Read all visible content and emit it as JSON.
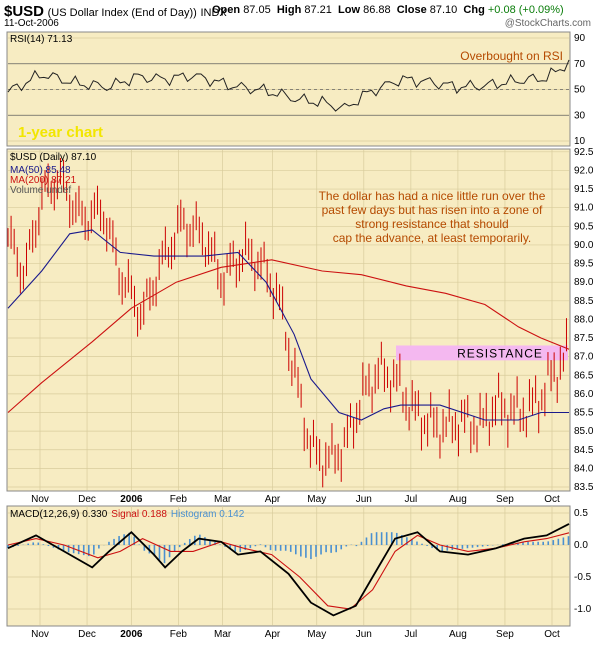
{
  "header": {
    "symbol": "$USD",
    "name": "(US Dollar Index (End of Day))",
    "exchange": "INDX",
    "date": "11-Oct-2006",
    "open_label": "Open",
    "open": "87.05",
    "high_label": "High",
    "high": "87.21",
    "low_label": "Low",
    "low": "86.88",
    "close_label": "Close",
    "close": "87.10",
    "chg_label": "Chg",
    "chg": "+0.08 (+0.09%)",
    "logo": "@StockCharts.com"
  },
  "annotations": {
    "overbought": "Overbought on RSI",
    "one_year": "1-year chart",
    "comment_lines": [
      "The dollar has had a nice little run over the",
      "past few days but has risen into a zone of",
      "strong resistance that should",
      "cap the advance, at least temporarily."
    ],
    "resistance": "RESISTANCE"
  },
  "colors": {
    "panel_bg": "#f7ecc2",
    "price_bar": "#cc0000",
    "ma50": "#1a1a8c",
    "ma200": "#cc1111",
    "resistance_band": "#f4b8f0",
    "annotation_text": "#b54a00",
    "rsi_line": "#222222",
    "macd_hist": "#4a90d0"
  },
  "chart_data": [
    {
      "type": "line",
      "title": "RSI(14) 71.13",
      "ylim": [
        10,
        90
      ],
      "yticks": [
        10,
        30,
        50,
        70,
        90
      ],
      "reference_lines": [
        30,
        70
      ],
      "series": [
        {
          "name": "RSI(14)",
          "x": [
            0,
            6,
            12,
            18,
            23,
            28,
            33,
            38,
            41,
            46,
            52,
            56,
            60,
            64,
            70,
            75,
            80,
            85,
            91,
            96,
            100
          ],
          "values": [
            48,
            62,
            55,
            52,
            60,
            58,
            61,
            55,
            52,
            49,
            42,
            40,
            35,
            47,
            58,
            56,
            52,
            53,
            57,
            59,
            71
          ]
        }
      ]
    },
    {
      "type": "line",
      "title": "$USD (Daily) 87.10",
      "ylim": [
        83.5,
        92.5
      ],
      "yticks": [
        83.5,
        84.0,
        84.5,
        85.0,
        85.5,
        86.0,
        86.5,
        87.0,
        87.5,
        88.0,
        88.5,
        89.0,
        89.5,
        90.0,
        90.5,
        91.0,
        91.5,
        92.0,
        92.5
      ],
      "xticks": [
        "Nov",
        "Dec",
        "2006",
        "Feb",
        "Mar",
        "Apr",
        "May",
        "Jun",
        "Jul",
        "Aug",
        "Sep",
        "Oct"
      ],
      "resistance_zone": [
        86.9,
        87.3
      ],
      "series": [
        {
          "name": "$USD (Daily)",
          "x": [
            0,
            3,
            6,
            9,
            13,
            17,
            20,
            24,
            27,
            31,
            35,
            38,
            42,
            45,
            48,
            51,
            54,
            57,
            60,
            63,
            66,
            69,
            72,
            75,
            78,
            81,
            84,
            87,
            90,
            93,
            95,
            97,
            100
          ],
          "values": [
            90.2,
            89.2,
            91.3,
            91.8,
            90.7,
            90.9,
            89.2,
            88.1,
            89.4,
            90.6,
            90.2,
            89.1,
            89.8,
            89.5,
            88.7,
            86.6,
            84.5,
            84.2,
            84.6,
            85.9,
            86.6,
            86.4,
            85.6,
            85.2,
            85.1,
            85.3,
            85.1,
            85.7,
            85.5,
            85.6,
            85.9,
            86.5,
            87.1
          ]
        },
        {
          "name": "MA(50) 85.48",
          "x": [
            0,
            6,
            11,
            15,
            20,
            26,
            31,
            35,
            41,
            46,
            51,
            54,
            59,
            63,
            67,
            70,
            77,
            85,
            91,
            95,
            100
          ],
          "values": [
            88.3,
            89.3,
            90.3,
            90.4,
            89.8,
            89.7,
            89.7,
            89.7,
            89.8,
            89.0,
            87.6,
            86.4,
            85.5,
            85.3,
            85.6,
            85.7,
            85.7,
            85.3,
            85.3,
            85.5,
            85.5
          ]
        },
        {
          "name": "MA(200) 87.21",
          "x": [
            0,
            6,
            15,
            22,
            30,
            38,
            47,
            56,
            63,
            71,
            78,
            85,
            91,
            95,
            100
          ],
          "values": [
            85.5,
            86.3,
            87.4,
            88.3,
            89.0,
            89.4,
            89.6,
            89.3,
            89.2,
            88.9,
            88.7,
            88.4,
            87.8,
            87.5,
            87.2
          ]
        }
      ],
      "legend": [
        "$USD (Daily) 87.10",
        "MA(50) 85.48",
        "MA(200) 87.21",
        "Volume undef"
      ]
    },
    {
      "type": "line",
      "title": "MACD(12,26,9) 0.330, 0.188, 0.142",
      "ylim": [
        -1.25,
        0.75
      ],
      "yticks": [
        -1.0,
        -0.5,
        0.0,
        0.5
      ],
      "series": [
        {
          "name": "MACD(12,26,9) 0.330",
          "x": [
            0,
            5,
            10,
            15,
            18,
            22,
            26,
            28,
            31,
            34,
            38,
            41,
            45,
            50,
            54,
            58,
            62,
            65,
            69,
            73,
            77,
            82,
            87,
            92,
            96,
            100
          ],
          "values": [
            -0.05,
            0.15,
            -0.1,
            -0.35,
            -0.1,
            0.2,
            -0.15,
            -0.35,
            -0.1,
            0.1,
            0.05,
            -0.15,
            -0.1,
            -0.45,
            -0.9,
            -1.1,
            -0.95,
            -0.5,
            0.1,
            0.2,
            -0.1,
            -0.15,
            -0.05,
            0.1,
            0.15,
            0.33
          ]
        },
        {
          "name": "Signal 0.188",
          "x": [
            0,
            5,
            10,
            16,
            20,
            24,
            29,
            33,
            38,
            42,
            47,
            52,
            57,
            61,
            65,
            69,
            73,
            77,
            82,
            87,
            92,
            96,
            100
          ],
          "values": [
            0.0,
            0.1,
            0.0,
            -0.2,
            -0.1,
            0.1,
            -0.1,
            -0.1,
            0.05,
            -0.05,
            -0.15,
            -0.5,
            -0.95,
            -1.0,
            -0.7,
            -0.1,
            0.15,
            0.0,
            -0.1,
            -0.05,
            0.05,
            0.1,
            0.19
          ]
        },
        {
          "name": "Histogram 0.142",
          "values": [
            0.142
          ]
        }
      ]
    }
  ]
}
